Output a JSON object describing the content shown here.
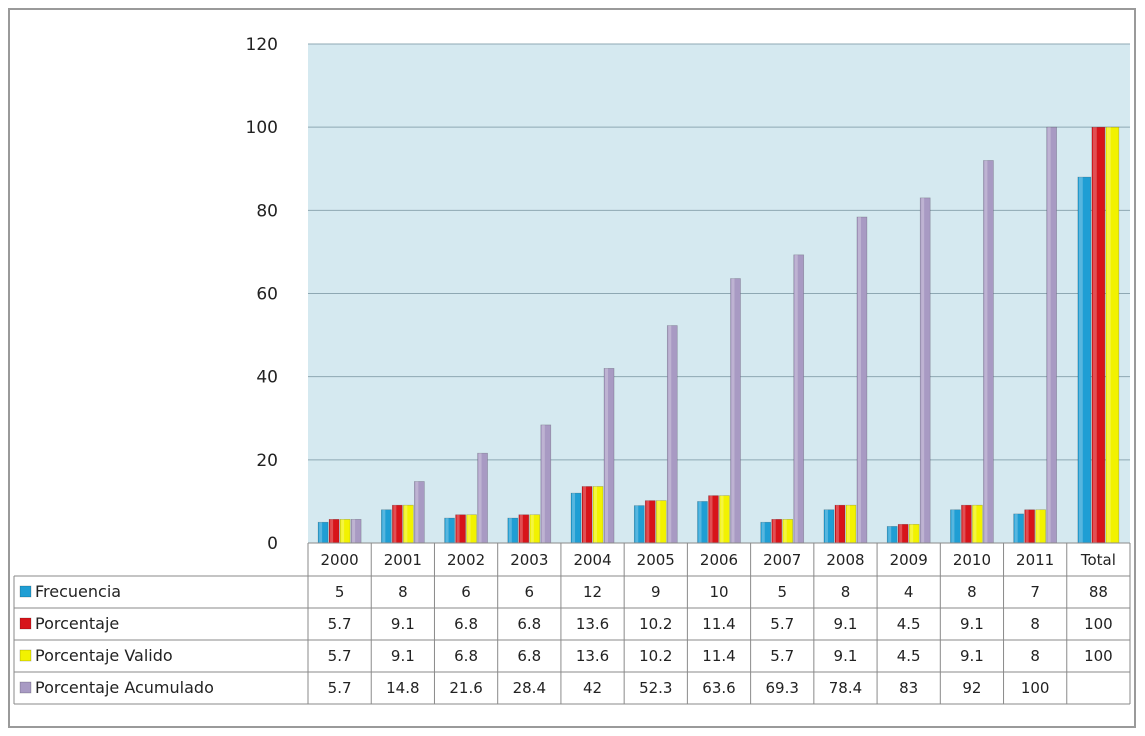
{
  "colors": {
    "plot_bg": "#d5e9f0",
    "gridline": "#8ea8b3",
    "border": "#9a9a9a",
    "table_line": "#8a8a8a",
    "series": [
      "#1f9ed4",
      "#d7141a",
      "#f2f200",
      "#a89ac3"
    ]
  },
  "chart_data": {
    "type": "bar",
    "categories": [
      "2000",
      "2001",
      "2002",
      "2003",
      "2004",
      "2005",
      "2006",
      "2007",
      "2008",
      "2009",
      "2010",
      "2011",
      "Total"
    ],
    "ylim": [
      0,
      120
    ],
    "yticks": [
      0,
      20,
      40,
      60,
      80,
      100,
      120
    ],
    "grid": true,
    "legend": "data-table-left",
    "series": [
      {
        "name": "Frecuencia",
        "values": [
          5,
          8,
          6,
          6,
          12,
          9,
          10,
          5,
          8,
          4,
          8,
          7,
          88
        ]
      },
      {
        "name": "Porcentaje",
        "values": [
          5.7,
          9.1,
          6.8,
          6.8,
          13.6,
          10.2,
          11.4,
          5.7,
          9.1,
          4.5,
          9.1,
          8,
          100
        ]
      },
      {
        "name": "Porcentaje Valido",
        "values": [
          5.7,
          9.1,
          6.8,
          6.8,
          13.6,
          10.2,
          11.4,
          5.7,
          9.1,
          4.5,
          9.1,
          8,
          100
        ]
      },
      {
        "name": "Porcentaje Acumulado",
        "values": [
          5.7,
          14.8,
          21.6,
          28.4,
          42,
          52.3,
          63.6,
          69.3,
          78.4,
          83,
          92,
          100,
          null
        ]
      }
    ]
  }
}
